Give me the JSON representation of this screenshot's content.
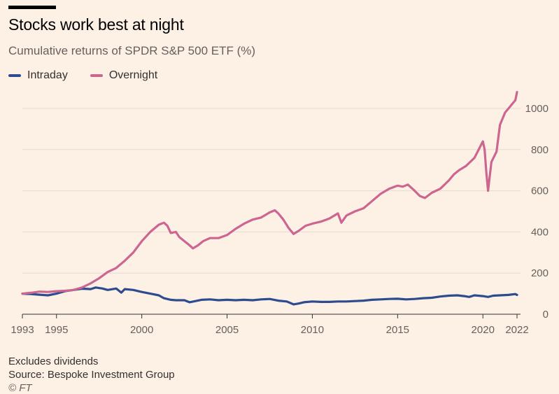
{
  "header": {
    "title": "Stocks work best at night",
    "subtitle": "Cumulative returns of SPDR S&P 500 ETF (%)"
  },
  "footer": {
    "note": "Excludes dividends",
    "source": "Source: Bespoke Investment Group",
    "credit": "© FT"
  },
  "colors": {
    "background": "#fdf1e6",
    "intraday": "#2e4b8f",
    "overnight": "#cc6690",
    "grid": "#e6dbd1",
    "axis": "#33302e"
  },
  "chart_data": {
    "type": "line",
    "title": "Stocks work best at night",
    "subtitle": "Cumulative returns of SPDR S&P 500 ETF (%)",
    "xlabel": "",
    "ylabel": "",
    "xlim": [
      1993,
      2022
    ],
    "ylim": [
      0,
      1100
    ],
    "x_ticks": [
      {
        "value": 1993,
        "label": "1993"
      },
      {
        "value": 1995,
        "label": "1995"
      },
      {
        "value": 2000,
        "label": "2000"
      },
      {
        "value": 2005,
        "label": "2005"
      },
      {
        "value": 2010,
        "label": "2010"
      },
      {
        "value": 2015,
        "label": "2015"
      },
      {
        "value": 2020,
        "label": "2020"
      },
      {
        "value": 2022,
        "label": "2022"
      }
    ],
    "y_ticks": [
      {
        "value": 0,
        "label": "0"
      },
      {
        "value": 200,
        "label": "200"
      },
      {
        "value": 400,
        "label": "400"
      },
      {
        "value": 600,
        "label": "600"
      },
      {
        "value": 800,
        "label": "800"
      },
      {
        "value": 1000,
        "label": "1000"
      }
    ],
    "y_axis_side": "right",
    "grid": "horizontal",
    "legend_position": "top-left",
    "series": [
      {
        "name": "Intraday",
        "color": "#2e4b8f",
        "x": [
          1993,
          1993.5,
          1994,
          1994.5,
          1995,
          1995.5,
          1996,
          1996.5,
          1997,
          1997.3,
          1997.7,
          1998,
          1998.5,
          1998.8,
          1999,
          1999.5,
          2000,
          2000.5,
          2001,
          2001.3,
          2001.7,
          2002,
          2002.5,
          2002.8,
          2003.2,
          2003.5,
          2004,
          2004.5,
          2005,
          2005.5,
          2006,
          2006.5,
          2007,
          2007.5,
          2008,
          2008.5,
          2008.9,
          2009.2,
          2009.5,
          2010,
          2010.5,
          2011,
          2011.5,
          2012,
          2012.5,
          2013,
          2013.5,
          2014,
          2014.5,
          2015,
          2015.5,
          2016,
          2016.5,
          2017,
          2017.5,
          2018,
          2018.5,
          2018.9,
          2019.2,
          2019.5,
          2020,
          2020.3,
          2020.6,
          2021,
          2021.5,
          2021.9,
          2022
        ],
        "y": [
          100,
          98,
          95,
          92,
          100,
          112,
          118,
          124,
          122,
          130,
          125,
          118,
          125,
          105,
          122,
          118,
          108,
          100,
          92,
          78,
          70,
          68,
          68,
          58,
          65,
          70,
          72,
          68,
          70,
          68,
          70,
          68,
          72,
          74,
          66,
          62,
          48,
          52,
          58,
          62,
          60,
          60,
          62,
          62,
          64,
          66,
          70,
          72,
          74,
          75,
          72,
          74,
          78,
          80,
          86,
          90,
          92,
          88,
          84,
          92,
          88,
          84,
          90,
          92,
          94,
          98,
          94
        ]
      },
      {
        "name": "Overnight",
        "color": "#cc6690",
        "x": [
          1993,
          1993.5,
          1994,
          1994.5,
          1995,
          1995.5,
          1996,
          1996.5,
          1997,
          1997.5,
          1998,
          1998.5,
          1999,
          1999.5,
          2000,
          2000.5,
          2001,
          2001.3,
          2001.5,
          2001.7,
          2002,
          2002.2,
          2002.5,
          2002.8,
          2003,
          2003.3,
          2003.6,
          2004,
          2004.5,
          2005,
          2005.5,
          2006,
          2006.5,
          2007,
          2007.5,
          2007.8,
          2008,
          2008.3,
          2008.6,
          2008.9,
          2009.2,
          2009.6,
          2010,
          2010.5,
          2011,
          2011.5,
          2011.7,
          2012,
          2012.5,
          2013,
          2013.5,
          2014,
          2014.5,
          2015,
          2015.3,
          2015.6,
          2016,
          2016.3,
          2016.6,
          2017,
          2017.5,
          2018,
          2018.3,
          2018.6,
          2019,
          2019.5,
          2020,
          2020.1,
          2020.2,
          2020.3,
          2020.5,
          2020.8,
          2021,
          2021.3,
          2021.6,
          2021.9,
          2022
        ],
        "y": [
          100,
          104,
          110,
          108,
          112,
          114,
          118,
          130,
          150,
          175,
          205,
          225,
          260,
          300,
          355,
          400,
          435,
          445,
          430,
          395,
          400,
          375,
          355,
          335,
          320,
          335,
          355,
          370,
          370,
          385,
          415,
          440,
          460,
          470,
          495,
          505,
          490,
          460,
          420,
          390,
          405,
          430,
          440,
          450,
          465,
          490,
          445,
          480,
          500,
          515,
          550,
          585,
          610,
          625,
          620,
          630,
          600,
          575,
          565,
          590,
          610,
          650,
          680,
          700,
          720,
          760,
          840,
          800,
          690,
          600,
          740,
          790,
          920,
          980,
          1010,
          1040,
          1080
        ]
      }
    ]
  }
}
